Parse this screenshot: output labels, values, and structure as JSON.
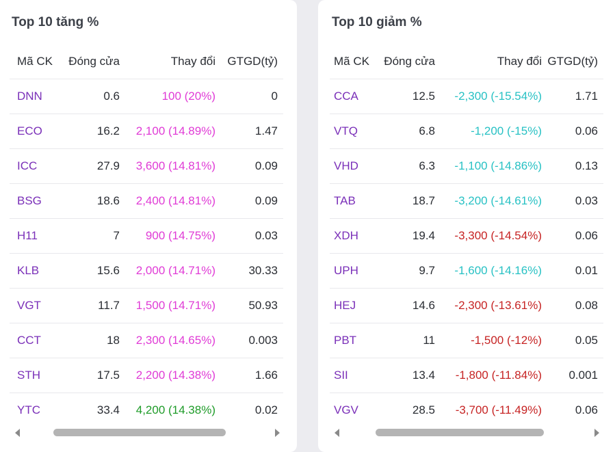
{
  "gainers": {
    "title": "Top 10 tăng %",
    "headers": [
      "Mã CK",
      "Đóng cửa",
      "Thay đổi",
      "GTGD(tỷ)"
    ],
    "rows": [
      {
        "symbol": "DNN",
        "close": "0.6",
        "change": "100 (20%)",
        "value": "0",
        "color": "up"
      },
      {
        "symbol": "ECO",
        "close": "16.2",
        "change": "2,100 (14.89%)",
        "value": "1.47",
        "color": "up"
      },
      {
        "symbol": "ICC",
        "close": "27.9",
        "change": "3,600 (14.81%)",
        "value": "0.09",
        "color": "up"
      },
      {
        "symbol": "BSG",
        "close": "18.6",
        "change": "2,400 (14.81%)",
        "value": "0.09",
        "color": "up"
      },
      {
        "symbol": "H11",
        "close": "7",
        "change": "900 (14.75%)",
        "value": "0.03",
        "color": "up"
      },
      {
        "symbol": "KLB",
        "close": "15.6",
        "change": "2,000 (14.71%)",
        "value": "30.33",
        "color": "up"
      },
      {
        "symbol": "VGT",
        "close": "11.7",
        "change": "1,500 (14.71%)",
        "value": "50.93",
        "color": "up"
      },
      {
        "symbol": "CCT",
        "close": "18",
        "change": "2,300 (14.65%)",
        "value": "0.003",
        "color": "up"
      },
      {
        "symbol": "STH",
        "close": "17.5",
        "change": "2,200 (14.38%)",
        "value": "1.66",
        "color": "up"
      },
      {
        "symbol": "YTC",
        "close": "33.4",
        "change": "4,200 (14.38%)",
        "value": "0.02",
        "color": "ceil-green"
      }
    ]
  },
  "losers": {
    "title": "Top 10 giảm %",
    "headers": [
      "Mã CK",
      "Đóng cửa",
      "Thay đổi",
      "GTGD(tỷ)"
    ],
    "rows": [
      {
        "symbol": "CCA",
        "close": "12.5",
        "change": "-2,300 (-15.54%)",
        "value": "1.71",
        "color": "down-cyan"
      },
      {
        "symbol": "VTQ",
        "close": "6.8",
        "change": "-1,200 (-15%)",
        "value": "0.06",
        "color": "down-cyan"
      },
      {
        "symbol": "VHD",
        "close": "6.3",
        "change": "-1,100 (-14.86%)",
        "value": "0.13",
        "color": "down-cyan"
      },
      {
        "symbol": "TAB",
        "close": "18.7",
        "change": "-3,200 (-14.61%)",
        "value": "0.03",
        "color": "down-cyan"
      },
      {
        "symbol": "XDH",
        "close": "19.4",
        "change": "-3,300 (-14.54%)",
        "value": "0.06",
        "color": "down-red"
      },
      {
        "symbol": "UPH",
        "close": "9.7",
        "change": "-1,600 (-14.16%)",
        "value": "0.01",
        "color": "down-cyan"
      },
      {
        "symbol": "HEJ",
        "close": "14.6",
        "change": "-2,300 (-13.61%)",
        "value": "0.08",
        "color": "down-red"
      },
      {
        "symbol": "PBT",
        "close": "11",
        "change": "-1,500 (-12%)",
        "value": "0.05",
        "color": "down-red"
      },
      {
        "symbol": "SII",
        "close": "13.4",
        "change": "-1,800 (-11.84%)",
        "value": "0.001",
        "color": "down-red"
      },
      {
        "symbol": "VGV",
        "close": "28.5",
        "change": "-3,700 (-11.49%)",
        "value": "0.06",
        "color": "down-red"
      }
    ]
  },
  "colors": {
    "up": "#e03bd6",
    "ceil_green": "#1e9b28",
    "down_cyan": "#27c1c4",
    "down_red": "#c62323",
    "symbol": "#7a2fb8"
  }
}
